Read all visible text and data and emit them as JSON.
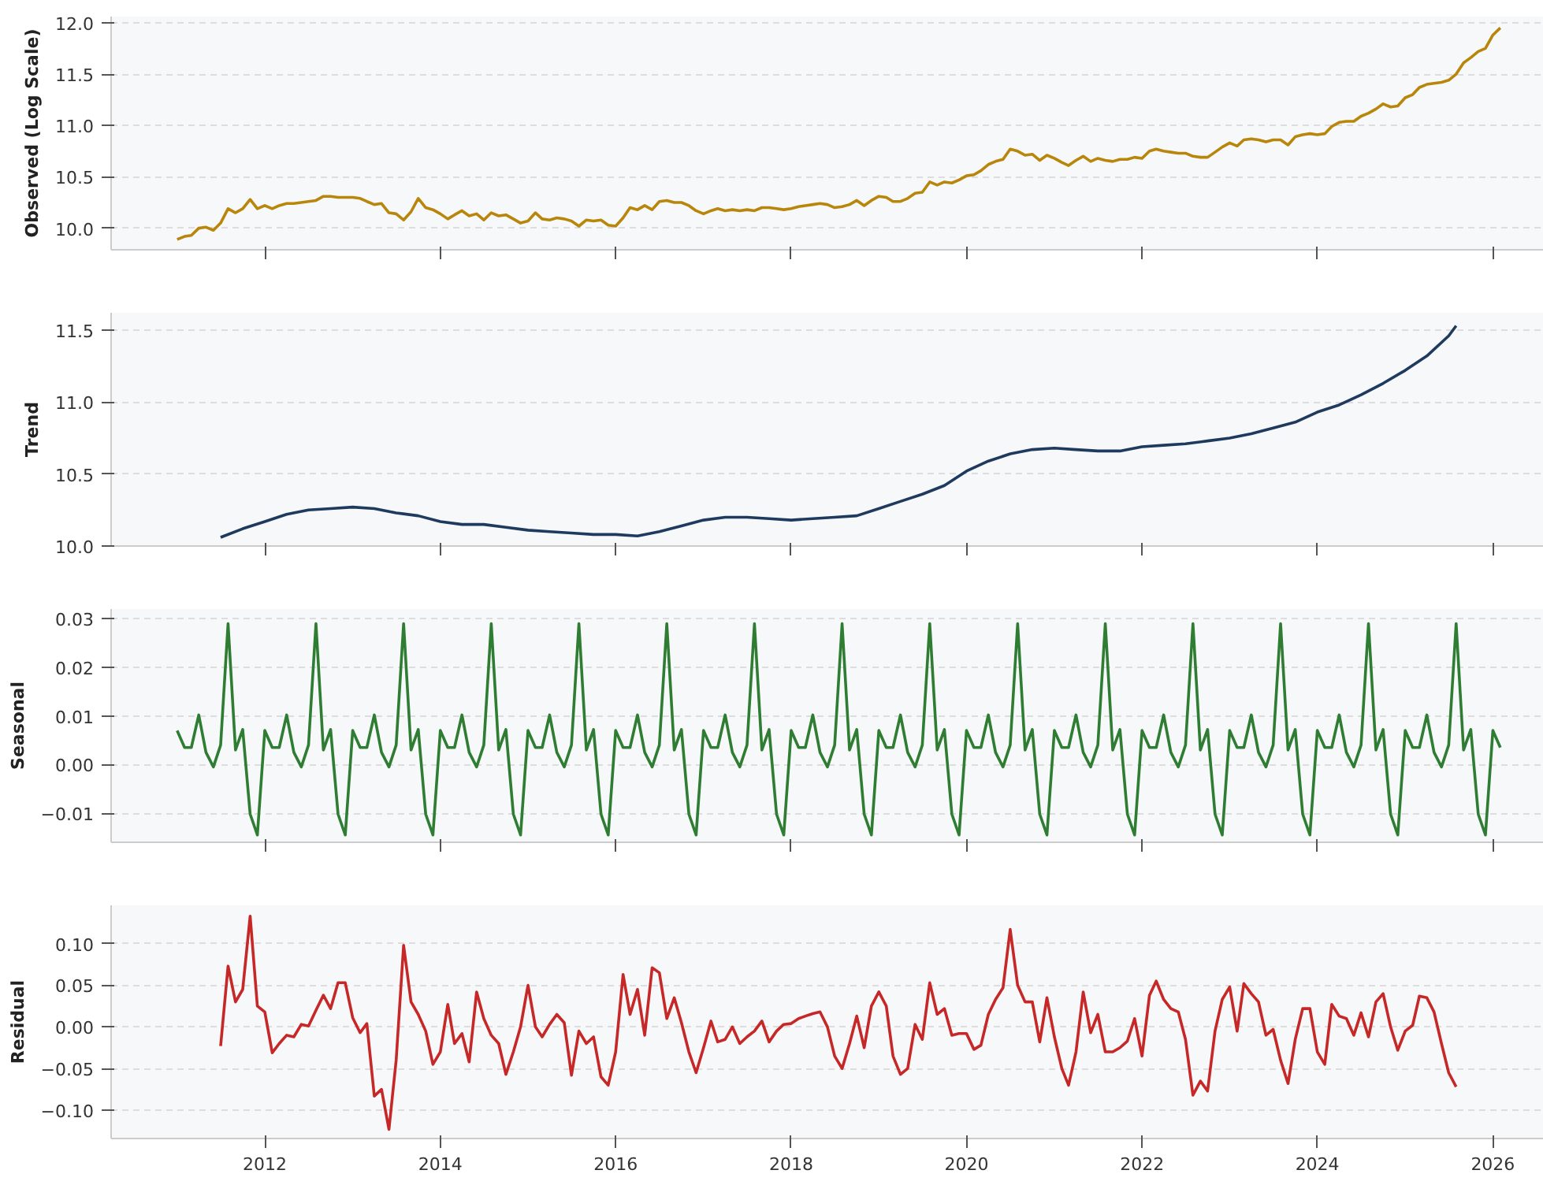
{
  "chart_data": [
    {
      "type": "line",
      "ylabel": "Observed (Log Scale)",
      "xlim": [
        "2010-04",
        "2026-08"
      ],
      "xticks": [
        "2012",
        "2014",
        "2016",
        "2018",
        "2020",
        "2022",
        "2024",
        "2026"
      ],
      "ylim": [
        9.79,
        12.06
      ],
      "yticks": [
        {
          "value": 10,
          "label": "10.0"
        },
        {
          "value": 10.5,
          "label": "10.5"
        },
        {
          "value": 11,
          "label": "11.0"
        },
        {
          "value": 11.5,
          "label": "11.5"
        },
        {
          "value": 12,
          "label": "12.0"
        }
      ],
      "grid": "y",
      "tick_labels": "y",
      "x": [
        "2011-01",
        "2011-02",
        "2011-03",
        "2011-04",
        "2011-05",
        "2011-06",
        "2011-07",
        "2011-08",
        "2011-09",
        "2011-10",
        "2011-11",
        "2011-12",
        "2012-01",
        "2012-02",
        "2012-03",
        "2012-04",
        "2012-05",
        "2012-06",
        "2012-07",
        "2012-08",
        "2012-09",
        "2012-10",
        "2012-11",
        "2012-12",
        "2013-01",
        "2013-02",
        "2013-03",
        "2013-04",
        "2013-05",
        "2013-06",
        "2013-07",
        "2013-08",
        "2013-09",
        "2013-10",
        "2013-11",
        "2013-12",
        "2014-01",
        "2014-02",
        "2014-03",
        "2014-04",
        "2014-05",
        "2014-06",
        "2014-07",
        "2014-08",
        "2014-09",
        "2014-10",
        "2014-11",
        "2014-12",
        "2015-01",
        "2015-02",
        "2015-03",
        "2015-04",
        "2015-05",
        "2015-06",
        "2015-07",
        "2015-08",
        "2015-09",
        "2015-10",
        "2015-11",
        "2015-12",
        "2016-01",
        "2016-02",
        "2016-03",
        "2016-04",
        "2016-05",
        "2016-06",
        "2016-07",
        "2016-08",
        "2016-09",
        "2016-10",
        "2016-11",
        "2016-12",
        "2017-01",
        "2017-02",
        "2017-03",
        "2017-04",
        "2017-05",
        "2017-06",
        "2017-07",
        "2017-08",
        "2017-09",
        "2017-10",
        "2017-11",
        "2017-12",
        "2018-01",
        "2018-02",
        "2018-03",
        "2018-04",
        "2018-05",
        "2018-06",
        "2018-07",
        "2018-08",
        "2018-09",
        "2018-10",
        "2018-11",
        "2018-12",
        "2019-01",
        "2019-02",
        "2019-03",
        "2019-04",
        "2019-05",
        "2019-06",
        "2019-07",
        "2019-08",
        "2019-09",
        "2019-10",
        "2019-11",
        "2019-12",
        "2020-01",
        "2020-02",
        "2020-03",
        "2020-04",
        "2020-05",
        "2020-06",
        "2020-07",
        "2020-08",
        "2020-09",
        "2020-10",
        "2020-11",
        "2020-12",
        "2021-01",
        "2021-02",
        "2021-03",
        "2021-04",
        "2021-05",
        "2021-06",
        "2021-07",
        "2021-08",
        "2021-09",
        "2021-10",
        "2021-11",
        "2021-12",
        "2022-01",
        "2022-02",
        "2022-03",
        "2022-04",
        "2022-05",
        "2022-06",
        "2022-07",
        "2022-08",
        "2022-09",
        "2022-10",
        "2022-11",
        "2022-12",
        "2023-01",
        "2023-02",
        "2023-03",
        "2023-04",
        "2023-05",
        "2023-06",
        "2023-07",
        "2023-08",
        "2023-09",
        "2023-10",
        "2023-11",
        "2023-12",
        "2024-01",
        "2024-02",
        "2024-03",
        "2024-04",
        "2024-05",
        "2024-06",
        "2024-07",
        "2024-08",
        "2024-09",
        "2024-10",
        "2024-11",
        "2024-12",
        "2025-01",
        "2025-02",
        "2025-03",
        "2025-04",
        "2025-05",
        "2025-06",
        "2025-07",
        "2025-08",
        "2025-09",
        "2025-10",
        "2025-11",
        "2025-12",
        "2026-01",
        "2026-02"
      ],
      "series": [
        {
          "color": "#b8860b",
          "values": [
            9.89,
            9.92,
            9.93,
            10.0,
            10.01,
            9.98,
            10.05,
            10.19,
            10.15,
            10.19,
            10.28,
            10.19,
            10.22,
            10.19,
            10.22,
            10.24,
            10.24,
            10.25,
            10.26,
            10.27,
            10.31,
            10.31,
            10.3,
            10.3,
            10.3,
            10.29,
            10.26,
            10.23,
            10.24,
            10.15,
            10.14,
            10.08,
            10.16,
            10.29,
            10.2,
            10.18,
            10.14,
            10.09,
            10.13,
            10.17,
            10.12,
            10.14,
            10.08,
            10.15,
            10.12,
            10.13,
            10.09,
            10.05,
            10.07,
            10.15,
            10.09,
            10.08,
            10.1,
            10.09,
            10.07,
            10.02,
            10.08,
            10.07,
            10.08,
            10.03,
            10.02,
            10.1,
            10.2,
            10.18,
            10.22,
            10.18,
            10.26,
            10.27,
            10.25,
            10.25,
            10.22,
            10.17,
            10.14,
            10.17,
            10.19,
            10.17,
            10.18,
            10.17,
            10.18,
            10.17,
            10.2,
            10.2,
            10.19,
            10.18,
            10.19,
            10.21,
            10.22,
            10.23,
            10.24,
            10.23,
            10.2,
            10.21,
            10.23,
            10.27,
            10.22,
            10.27,
            10.31,
            10.3,
            10.26,
            10.26,
            10.29,
            10.34,
            10.35,
            10.45,
            10.42,
            10.45,
            10.44,
            10.47,
            10.51,
            10.52,
            10.56,
            10.62,
            10.65,
            10.67,
            10.77,
            10.75,
            10.71,
            10.72,
            10.66,
            10.71,
            10.68,
            10.64,
            10.61,
            10.66,
            10.7,
            10.65,
            10.68,
            10.66,
            10.65,
            10.67,
            10.67,
            10.69,
            10.68,
            10.75,
            10.77,
            10.75,
            10.74,
            10.73,
            10.73,
            10.7,
            10.69,
            10.69,
            10.74,
            10.79,
            10.83,
            10.8,
            10.86,
            10.87,
            10.86,
            10.84,
            10.86,
            10.86,
            10.81,
            10.89,
            10.91,
            10.92,
            10.91,
            10.92,
            10.99,
            11.03,
            11.04,
            11.04,
            11.09,
            11.12,
            11.16,
            11.21,
            11.18,
            11.19,
            11.27,
            11.3,
            11.37,
            11.4,
            11.41,
            11.42,
            11.44,
            11.5,
            11.61,
            11.66,
            11.72,
            11.75,
            11.88,
            11.95
          ]
        }
      ]
    },
    {
      "type": "line",
      "ylabel": "Trend",
      "xlim": [
        "2010-04",
        "2026-08"
      ],
      "xticks": [
        "2012",
        "2014",
        "2016",
        "2018",
        "2020",
        "2022",
        "2024",
        "2026"
      ],
      "ylim": [
        10.0,
        11.62
      ],
      "yticks": [
        {
          "value": 10,
          "label": "10.0"
        },
        {
          "value": 10.5,
          "label": "10.5"
        },
        {
          "value": 11,
          "label": "11.0"
        },
        {
          "value": 11.5,
          "label": "11.5"
        }
      ],
      "grid": "y",
      "tick_labels": "y",
      "series": [
        {
          "color": "#1f3a5f",
          "x": [
            "2011-07",
            "2011-10",
            "2012-01",
            "2012-04",
            "2012-07",
            "2012-10",
            "2013-01",
            "2013-04",
            "2013-07",
            "2013-10",
            "2014-01",
            "2014-04",
            "2014-07",
            "2014-10",
            "2015-01",
            "2015-04",
            "2015-07",
            "2015-10",
            "2016-01",
            "2016-04",
            "2016-07",
            "2016-10",
            "2017-01",
            "2017-04",
            "2017-07",
            "2017-10",
            "2018-01",
            "2018-04",
            "2018-07",
            "2018-10",
            "2019-01",
            "2019-04",
            "2019-07",
            "2019-10",
            "2020-01",
            "2020-04",
            "2020-07",
            "2020-10",
            "2021-01",
            "2021-04",
            "2021-07",
            "2021-10",
            "2022-01",
            "2022-04",
            "2022-07",
            "2022-10",
            "2023-01",
            "2023-04",
            "2023-07",
            "2023-10",
            "2024-01",
            "2024-04",
            "2024-07",
            "2024-10",
            "2025-01",
            "2025-04",
            "2025-07",
            "2025-08"
          ],
          "values": [
            10.06,
            10.12,
            10.17,
            10.22,
            10.25,
            10.26,
            10.27,
            10.26,
            10.23,
            10.21,
            10.17,
            10.15,
            10.15,
            10.13,
            10.11,
            10.1,
            10.09,
            10.08,
            10.08,
            10.07,
            10.1,
            10.14,
            10.18,
            10.2,
            10.2,
            10.19,
            10.18,
            10.19,
            10.2,
            10.21,
            10.26,
            10.31,
            10.36,
            10.42,
            10.52,
            10.59,
            10.64,
            10.67,
            10.68,
            10.67,
            10.66,
            10.66,
            10.69,
            10.7,
            10.71,
            10.73,
            10.75,
            10.78,
            10.82,
            10.86,
            10.93,
            10.98,
            11.05,
            11.13,
            11.22,
            11.32,
            11.46,
            11.53
          ]
        }
      ]
    },
    {
      "type": "line",
      "ylabel": "Seasonal",
      "xlim": [
        "2010-04",
        "2026-08"
      ],
      "xticks": [
        "2012",
        "2014",
        "2016",
        "2018",
        "2020",
        "2022",
        "2024",
        "2026"
      ],
      "ylim": [
        -0.016,
        0.032
      ],
      "yticks": [
        {
          "value": -0.01,
          "label": "−0.01"
        },
        {
          "value": 0,
          "label": "0.00"
        },
        {
          "value": 0.01,
          "label": "0.01"
        },
        {
          "value": 0.02,
          "label": "0.02"
        },
        {
          "value": 0.03,
          "label": "0.03"
        }
      ],
      "grid": "y",
      "tick_labels": "y",
      "x": [
        "2011-01",
        "2011-02",
        "2011-03",
        "2011-04",
        "2011-05",
        "2011-06",
        "2011-07",
        "2011-08",
        "2011-09",
        "2011-10",
        "2011-11",
        "2011-12",
        "2012-01",
        "2012-02",
        "2012-03",
        "2012-04",
        "2012-05",
        "2012-06",
        "2012-07",
        "2012-08",
        "2012-09",
        "2012-10",
        "2012-11",
        "2012-12",
        "2013-01",
        "2013-02",
        "2013-03",
        "2013-04",
        "2013-05",
        "2013-06",
        "2013-07",
        "2013-08",
        "2013-09",
        "2013-10",
        "2013-11",
        "2013-12",
        "2014-01",
        "2014-02",
        "2014-03",
        "2014-04",
        "2014-05",
        "2014-06",
        "2014-07",
        "2014-08",
        "2014-09",
        "2014-10",
        "2014-11",
        "2014-12",
        "2015-01",
        "2015-02",
        "2015-03",
        "2015-04",
        "2015-05",
        "2015-06",
        "2015-07",
        "2015-08",
        "2015-09",
        "2015-10",
        "2015-11",
        "2015-12",
        "2016-01",
        "2016-02",
        "2016-03",
        "2016-04",
        "2016-05",
        "2016-06",
        "2016-07",
        "2016-08",
        "2016-09",
        "2016-10",
        "2016-11",
        "2016-12",
        "2017-01",
        "2017-02",
        "2017-03",
        "2017-04",
        "2017-05",
        "2017-06",
        "2017-07",
        "2017-08",
        "2017-09",
        "2017-10",
        "2017-11",
        "2017-12",
        "2018-01",
        "2018-02",
        "2018-03",
        "2018-04",
        "2018-05",
        "2018-06",
        "2018-07",
        "2018-08",
        "2018-09",
        "2018-10",
        "2018-11",
        "2018-12",
        "2019-01",
        "2019-02",
        "2019-03",
        "2019-04",
        "2019-05",
        "2019-06",
        "2019-07",
        "2019-08",
        "2019-09",
        "2019-10",
        "2019-11",
        "2019-12",
        "2020-01",
        "2020-02",
        "2020-03",
        "2020-04",
        "2020-05",
        "2020-06",
        "2020-07",
        "2020-08",
        "2020-09",
        "2020-10",
        "2020-11",
        "2020-12",
        "2021-01",
        "2021-02",
        "2021-03",
        "2021-04",
        "2021-05",
        "2021-06",
        "2021-07",
        "2021-08",
        "2021-09",
        "2021-10",
        "2021-11",
        "2021-12",
        "2022-01",
        "2022-02",
        "2022-03",
        "2022-04",
        "2022-05",
        "2022-06",
        "2022-07",
        "2022-08",
        "2022-09",
        "2022-10",
        "2022-11",
        "2022-12",
        "2023-01",
        "2023-02",
        "2023-03",
        "2023-04",
        "2023-05",
        "2023-06",
        "2023-07",
        "2023-08",
        "2023-09",
        "2023-10",
        "2023-11",
        "2023-12",
        "2024-01",
        "2024-02",
        "2024-03",
        "2024-04",
        "2024-05",
        "2024-06",
        "2024-07",
        "2024-08",
        "2024-09",
        "2024-10",
        "2024-11",
        "2024-12",
        "2025-01",
        "2025-02",
        "2025-03",
        "2025-04",
        "2025-05",
        "2025-06",
        "2025-07",
        "2025-08",
        "2025-09",
        "2025-10",
        "2025-11",
        "2025-12",
        "2026-01",
        "2026-02"
      ],
      "series": [
        {
          "color": "#2e7d32",
          "values": [
            0.007,
            0.0035,
            0.0035,
            0.0102,
            0.0025,
            -0.0005,
            0.004,
            0.029,
            0.003,
            0.0072,
            -0.0102,
            -0.0145,
            0.007,
            0.0035,
            0.0035,
            0.0102,
            0.0025,
            -0.0005,
            0.004,
            0.029,
            0.003,
            0.0072,
            -0.0102,
            -0.0145,
            0.007,
            0.0035,
            0.0035,
            0.0102,
            0.0025,
            -0.0005,
            0.004,
            0.029,
            0.003,
            0.0072,
            -0.0102,
            -0.0145,
            0.007,
            0.0035,
            0.0035,
            0.0102,
            0.0025,
            -0.0005,
            0.004,
            0.029,
            0.003,
            0.0072,
            -0.0102,
            -0.0145,
            0.007,
            0.0035,
            0.0035,
            0.0102,
            0.0025,
            -0.0005,
            0.004,
            0.029,
            0.003,
            0.0072,
            -0.0102,
            -0.0145,
            0.007,
            0.0035,
            0.0035,
            0.0102,
            0.0025,
            -0.0005,
            0.004,
            0.029,
            0.003,
            0.0072,
            -0.0102,
            -0.0145,
            0.007,
            0.0035,
            0.0035,
            0.0102,
            0.0025,
            -0.0005,
            0.004,
            0.029,
            0.003,
            0.0072,
            -0.0102,
            -0.0145,
            0.007,
            0.0035,
            0.0035,
            0.0102,
            0.0025,
            -0.0005,
            0.004,
            0.029,
            0.003,
            0.0072,
            -0.0102,
            -0.0145,
            0.007,
            0.0035,
            0.0035,
            0.0102,
            0.0025,
            -0.0005,
            0.004,
            0.029,
            0.003,
            0.0072,
            -0.0102,
            -0.0145,
            0.007,
            0.0035,
            0.0035,
            0.0102,
            0.0025,
            -0.0005,
            0.004,
            0.029,
            0.003,
            0.0072,
            -0.0102,
            -0.0145,
            0.007,
            0.0035,
            0.0035,
            0.0102,
            0.0025,
            -0.0005,
            0.004,
            0.029,
            0.003,
            0.0072,
            -0.0102,
            -0.0145,
            0.007,
            0.0035,
            0.0035,
            0.0102,
            0.0025,
            -0.0005,
            0.004,
            0.029,
            0.003,
            0.0072,
            -0.0102,
            -0.0145,
            0.007,
            0.0035,
            0.0035,
            0.0102,
            0.0025,
            -0.0005,
            0.004,
            0.029,
            0.003,
            0.0072,
            -0.0102,
            -0.0145,
            0.007,
            0.0035,
            0.0035,
            0.0102,
            0.0025,
            -0.0005,
            0.004,
            0.029,
            0.003,
            0.0072,
            -0.0102,
            -0.0145,
            0.007,
            0.0035,
            0.0035,
            0.0102,
            0.0025,
            -0.0005,
            0.004,
            0.029,
            0.003,
            0.0072,
            -0.0102,
            -0.0145,
            0.007,
            0.0035
          ]
        }
      ]
    },
    {
      "type": "line",
      "ylabel": "Residual",
      "xlim": [
        "2010-04",
        "2026-08"
      ],
      "xticks": [
        "2012",
        "2014",
        "2016",
        "2018",
        "2020",
        "2022",
        "2024",
        "2026"
      ],
      "ylim": [
        -0.134,
        0.146
      ],
      "yticks": [
        {
          "value": -0.1,
          "label": "−0.10"
        },
        {
          "value": -0.05,
          "label": "−0.05"
        },
        {
          "value": 0,
          "label": "0.00"
        },
        {
          "value": 0.05,
          "label": "0.05"
        },
        {
          "value": 0.1,
          "label": "0.10"
        }
      ],
      "grid": "y",
      "x": [
        "2011-07",
        "2011-08",
        "2011-09",
        "2011-10",
        "2011-11",
        "2011-12",
        "2012-01",
        "2012-02",
        "2012-03",
        "2012-04",
        "2012-05",
        "2012-06",
        "2012-07",
        "2012-08",
        "2012-09",
        "2012-10",
        "2012-11",
        "2012-12",
        "2013-01",
        "2013-02",
        "2013-03",
        "2013-04",
        "2013-05",
        "2013-06",
        "2013-07",
        "2013-08",
        "2013-09",
        "2013-10",
        "2013-11",
        "2013-12",
        "2014-01",
        "2014-02",
        "2014-03",
        "2014-04",
        "2014-05",
        "2014-06",
        "2014-07",
        "2014-08",
        "2014-09",
        "2014-10",
        "2014-11",
        "2014-12",
        "2015-01",
        "2015-02",
        "2015-03",
        "2015-04",
        "2015-05",
        "2015-06",
        "2015-07",
        "2015-08",
        "2015-09",
        "2015-10",
        "2015-11",
        "2015-12",
        "2016-01",
        "2016-02",
        "2016-03",
        "2016-04",
        "2016-05",
        "2016-06",
        "2016-07",
        "2016-08",
        "2016-09",
        "2016-10",
        "2016-11",
        "2016-12",
        "2017-01",
        "2017-02",
        "2017-03",
        "2017-04",
        "2017-05",
        "2017-06",
        "2017-07",
        "2017-08",
        "2017-09",
        "2017-10",
        "2017-11",
        "2017-12",
        "2018-01",
        "2018-02",
        "2018-03",
        "2018-04",
        "2018-05",
        "2018-06",
        "2018-07",
        "2018-08",
        "2018-09",
        "2018-10",
        "2018-11",
        "2018-12",
        "2019-01",
        "2019-02",
        "2019-03",
        "2019-04",
        "2019-05",
        "2019-06",
        "2019-07",
        "2019-08",
        "2019-09",
        "2019-10",
        "2019-11",
        "2019-12",
        "2020-01",
        "2020-02",
        "2020-03",
        "2020-04",
        "2020-05",
        "2020-06",
        "2020-07",
        "2020-08",
        "2020-09",
        "2020-10",
        "2020-11",
        "2020-12",
        "2021-01",
        "2021-02",
        "2021-03",
        "2021-04",
        "2021-05",
        "2021-06",
        "2021-07",
        "2021-08",
        "2021-09",
        "2021-10",
        "2021-11",
        "2021-12",
        "2022-01",
        "2022-02",
        "2022-03",
        "2022-04",
        "2022-05",
        "2022-06",
        "2022-07",
        "2022-08",
        "2022-09",
        "2022-10",
        "2022-11",
        "2022-12",
        "2023-01",
        "2023-02",
        "2023-03",
        "2023-04",
        "2023-05",
        "2023-06",
        "2023-07",
        "2023-08",
        "2023-09",
        "2023-10",
        "2023-11",
        "2023-12",
        "2024-01",
        "2024-02",
        "2024-03",
        "2024-04",
        "2024-05",
        "2024-06",
        "2024-07",
        "2024-08",
        "2024-09",
        "2024-10",
        "2024-11",
        "2024-12",
        "2025-01",
        "2025-02",
        "2025-03",
        "2025-04",
        "2025-05",
        "2025-06",
        "2025-07",
        "2025-08"
      ],
      "series": [
        {
          "color": "#c62828",
          "values": [
            -0.023,
            0.073,
            0.03,
            0.045,
            0.133,
            0.025,
            0.018,
            -0.031,
            -0.02,
            -0.01,
            -0.012,
            0.003,
            0.001,
            0.02,
            0.038,
            0.022,
            0.053,
            0.053,
            0.011,
            -0.007,
            0.004,
            -0.083,
            -0.075,
            -0.123,
            -0.04,
            0.098,
            0.03,
            0.015,
            -0.005,
            -0.045,
            -0.03,
            0.027,
            -0.02,
            -0.008,
            -0.042,
            0.042,
            0.01,
            -0.01,
            -0.02,
            -0.057,
            -0.03,
            0.0,
            0.05,
            0.0,
            -0.012,
            0.003,
            0.015,
            0.005,
            -0.058,
            -0.005,
            -0.02,
            -0.012,
            -0.06,
            -0.07,
            -0.03,
            0.063,
            0.015,
            0.045,
            -0.01,
            0.071,
            0.065,
            0.01,
            0.035,
            0.005,
            -0.03,
            -0.055,
            -0.025,
            0.007,
            -0.018,
            -0.015,
            0.0,
            -0.02,
            -0.012,
            -0.005,
            0.007,
            -0.018,
            -0.005,
            0.003,
            0.004,
            0.01,
            0.013,
            0.016,
            0.018,
            0.0,
            -0.035,
            -0.05,
            -0.02,
            0.013,
            -0.025,
            0.025,
            0.042,
            0.025,
            -0.035,
            -0.057,
            -0.05,
            0.003,
            -0.015,
            0.053,
            0.015,
            0.022,
            -0.01,
            -0.008,
            -0.008,
            -0.027,
            -0.022,
            0.015,
            0.033,
            0.047,
            0.117,
            0.05,
            0.03,
            0.03,
            -0.018,
            0.035,
            -0.012,
            -0.05,
            -0.07,
            -0.03,
            0.042,
            -0.007,
            0.015,
            -0.03,
            -0.03,
            -0.025,
            -0.017,
            0.01,
            -0.035,
            0.038,
            0.055,
            0.033,
            0.022,
            0.018,
            -0.015,
            -0.082,
            -0.065,
            -0.077,
            -0.005,
            0.033,
            0.048,
            -0.005,
            0.052,
            0.04,
            0.03,
            -0.01,
            -0.003,
            -0.04,
            -0.068,
            -0.015,
            0.022,
            0.022,
            -0.03,
            -0.045,
            0.027,
            0.013,
            0.01,
            -0.01,
            0.017,
            -0.012,
            0.03,
            0.04,
            0.0,
            -0.028,
            -0.005,
            0.002,
            0.037,
            0.035,
            0.018,
            -0.02,
            -0.055,
            -0.072
          ]
        }
      ]
    }
  ]
}
